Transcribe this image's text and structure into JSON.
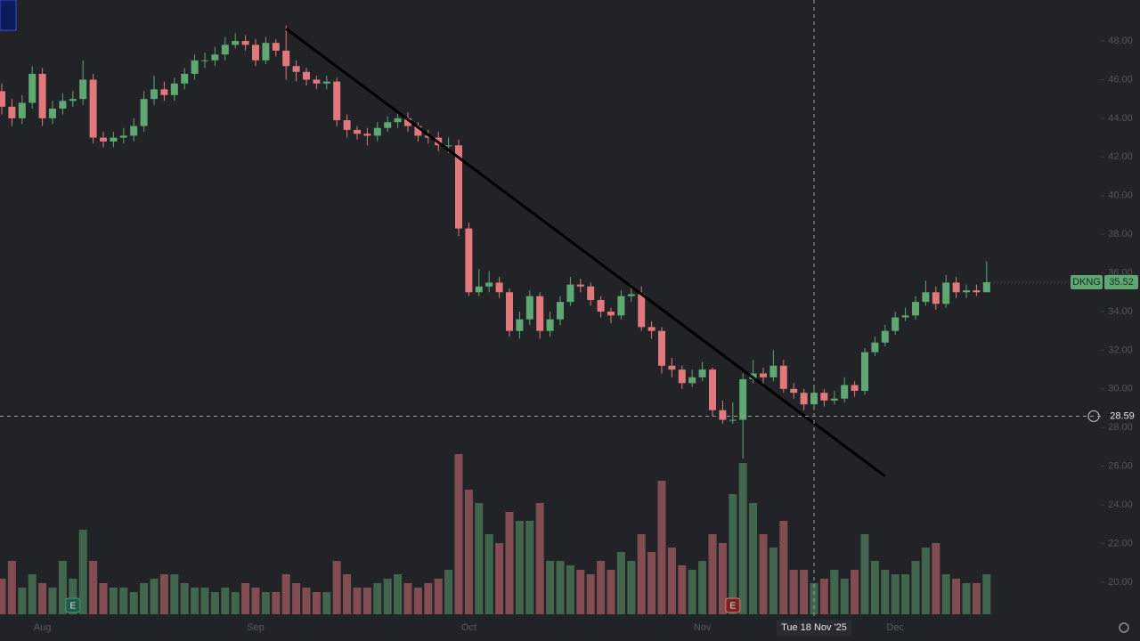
{
  "chart_data": {
    "type": "candlestick",
    "symbol": "DKNG",
    "categories": [
      null,
      null,
      null,
      null,
      "Aug",
      null,
      null,
      null,
      null,
      null,
      null,
      null,
      null,
      null,
      null,
      null,
      null,
      null,
      null,
      null,
      null,
      null,
      null,
      null,
      null,
      "Sep",
      null,
      null,
      null,
      null,
      null,
      null,
      null,
      null,
      null,
      null,
      null,
      null,
      null,
      null,
      null,
      null,
      null,
      null,
      null,
      null,
      "Oct",
      null,
      null,
      null,
      null,
      null,
      null,
      null,
      null,
      null,
      null,
      null,
      null,
      null,
      null,
      null,
      null,
      null,
      null,
      null,
      null,
      null,
      null,
      "Nov",
      null,
      null,
      null,
      null,
      null,
      null,
      null,
      null,
      null,
      null,
      null,
      null,
      null,
      null,
      null,
      null,
      null,
      null,
      "Dec",
      null,
      null,
      null,
      null,
      null,
      null,
      null,
      null,
      null
    ],
    "open": [
      45.4,
      44.6,
      44.0,
      44.8,
      46.3,
      44.0,
      44.5,
      44.9,
      45.0,
      46.0,
      43.0,
      42.8,
      43.0,
      43.1,
      43.6,
      45.0,
      45.5,
      45.2,
      45.8,
      46.3,
      47.0,
      47.0,
      47.3,
      47.8,
      48.0,
      47.8,
      47.0,
      47.9,
      47.5,
      46.7,
      46.4,
      46.0,
      45.8,
      45.9,
      43.9,
      43.4,
      43.2,
      43.1,
      43.5,
      43.8,
      44.0,
      43.6,
      43.1,
      43.0,
      42.6,
      42.6,
      38.3,
      35.0,
      35.3,
      35.5,
      35.0,
      33.0,
      33.6,
      34.8,
      33.0,
      33.6,
      34.5,
      35.4,
      35.3,
      34.6,
      34.0,
      33.8,
      34.8,
      34.9,
      33.2,
      33.0,
      31.2,
      31.0,
      30.3,
      30.6,
      31.0,
      28.9,
      28.4,
      28.4,
      30.5,
      30.8,
      30.6,
      31.2,
      30.0,
      29.8,
      29.2,
      29.8,
      29.4,
      29.5,
      30.2,
      29.9,
      31.9,
      32.4,
      33.0,
      33.7,
      33.8,
      34.5,
      35.0,
      34.4,
      35.5,
      35.0,
      35.1,
      35.0
    ],
    "high": [
      45.8,
      45.0,
      45.2,
      46.7,
      46.6,
      44.9,
      45.3,
      45.4,
      47.0,
      46.3,
      43.3,
      43.3,
      43.5,
      44.0,
      45.4,
      46.2,
      45.9,
      46.1,
      46.6,
      47.3,
      47.4,
      47.7,
      48.2,
      48.4,
      48.3,
      48.1,
      48.2,
      48.1,
      48.8,
      47.0,
      46.6,
      46.2,
      46.2,
      46.1,
      44.2,
      43.6,
      43.5,
      43.8,
      44.1,
      44.4,
      44.3,
      43.8,
      43.4,
      43.3,
      43.0,
      42.9,
      38.6,
      36.2,
      36.1,
      35.8,
      35.2,
      34.0,
      35.1,
      35.0,
      34.0,
      34.8,
      35.8,
      35.7,
      35.5,
      34.8,
      34.2,
      35.1,
      35.4,
      35.3,
      33.5,
      33.2,
      31.6,
      31.2,
      31.0,
      31.4,
      31.1,
      29.4,
      29.3,
      30.8,
      31.5,
      31.1,
      32.0,
      31.5,
      30.3,
      30.0,
      30.2,
      30.0,
      29.9,
      30.6,
      30.4,
      32.1,
      32.7,
      33.3,
      34.0,
      34.2,
      34.8,
      35.6,
      35.3,
      35.9,
      35.8,
      35.4,
      35.4,
      36.6
    ],
    "low": [
      44.2,
      43.6,
      43.7,
      44.5,
      43.6,
      43.7,
      44.2,
      44.6,
      44.7,
      42.7,
      42.5,
      42.5,
      42.7,
      42.8,
      43.3,
      44.7,
      44.9,
      44.9,
      45.5,
      46.0,
      46.6,
      46.7,
      47.0,
      47.6,
      47.5,
      46.7,
      46.8,
      47.2,
      46.0,
      45.9,
      45.7,
      45.5,
      45.5,
      43.6,
      43.0,
      42.9,
      42.6,
      42.8,
      43.3,
      43.5,
      43.3,
      42.8,
      42.7,
      42.3,
      42.2,
      37.9,
      34.8,
      34.8,
      35.0,
      34.7,
      32.7,
      32.6,
      33.3,
      32.6,
      32.7,
      33.3,
      34.3,
      35.0,
      34.3,
      33.7,
      33.4,
      33.6,
      34.5,
      33.0,
      32.6,
      30.8,
      30.6,
      30.0,
      30.1,
      30.4,
      28.6,
      28.2,
      28.2,
      26.4,
      30.3,
      30.3,
      30.4,
      29.8,
      29.5,
      28.9,
      28.9,
      29.1,
      29.2,
      29.3,
      29.6,
      29.7,
      31.7,
      32.2,
      32.8,
      33.5,
      33.6,
      34.3,
      34.1,
      34.2,
      34.7,
      34.7,
      34.8,
      35.2
    ],
    "close": [
      44.6,
      44.0,
      44.8,
      46.3,
      44.0,
      44.5,
      44.9,
      45.0,
      46.0,
      43.0,
      42.8,
      43.0,
      43.1,
      43.6,
      45.0,
      45.5,
      45.2,
      45.8,
      46.3,
      47.0,
      47.0,
      47.3,
      47.8,
      48.0,
      47.8,
      47.0,
      47.9,
      47.5,
      46.7,
      46.4,
      46.0,
      45.8,
      45.9,
      43.9,
      43.4,
      43.2,
      43.1,
      43.5,
      43.8,
      44.0,
      43.6,
      43.1,
      43.0,
      42.6,
      42.6,
      38.3,
      35.0,
      35.3,
      35.5,
      35.0,
      33.0,
      33.6,
      34.8,
      33.0,
      33.6,
      34.5,
      35.4,
      35.3,
      34.6,
      34.0,
      33.8,
      34.8,
      34.9,
      33.2,
      33.0,
      31.2,
      31.0,
      30.3,
      30.6,
      31.0,
      28.9,
      28.4,
      28.4,
      30.5,
      30.8,
      30.6,
      31.2,
      30.0,
      29.8,
      29.2,
      29.8,
      29.4,
      29.5,
      30.2,
      29.9,
      31.9,
      32.4,
      33.0,
      33.7,
      33.8,
      34.5,
      35.0,
      34.4,
      35.5,
      35.0,
      35.1,
      35.0,
      35.52
    ],
    "volume": [
      8,
      12,
      6,
      9,
      7,
      6,
      12,
      8,
      19,
      12,
      7,
      6,
      6,
      5,
      7,
      8,
      9,
      9,
      7,
      6,
      6,
      5,
      6,
      5,
      7,
      6,
      5,
      5,
      9,
      7,
      6,
      5,
      5,
      12,
      9,
      6,
      6,
      7,
      8,
      9,
      7,
      6,
      7,
      8,
      10,
      36,
      28,
      25,
      18,
      16,
      23,
      21,
      21,
      25,
      12,
      12,
      11,
      10,
      9,
      12,
      10,
      14,
      12,
      18,
      14,
      30,
      15,
      11,
      10,
      12,
      18,
      16,
      27,
      34,
      25,
      18,
      15,
      21,
      10,
      10,
      7,
      8,
      10,
      8,
      10,
      18,
      12,
      10,
      9,
      9,
      12,
      15,
      16,
      9,
      8,
      7,
      7,
      9
    ],
    "vlim": [
      0,
      40
    ],
    "ylim": [
      18.34,
      50.12
    ],
    "yticks": [
      {
        "value": 20,
        "label": "20.00"
      },
      {
        "value": 22,
        "label": "22.00"
      },
      {
        "value": 24,
        "label": "24.00"
      },
      {
        "value": 26,
        "label": "26.00"
      },
      {
        "value": 28,
        "label": "28.00"
      },
      {
        "value": 30,
        "label": "30.00"
      },
      {
        "value": 32,
        "label": "32.00"
      },
      {
        "value": 34,
        "label": "34.00"
      },
      {
        "value": 36,
        "label": "36.00"
      },
      {
        "value": 38,
        "label": "38.00"
      },
      {
        "value": 40,
        "label": "40.00"
      },
      {
        "value": 42,
        "label": "42.00"
      },
      {
        "value": 44,
        "label": "44.00"
      },
      {
        "value": 46,
        "label": "46.00"
      },
      {
        "value": 48,
        "label": "48.00"
      }
    ],
    "up_color": "#5fa873",
    "down_color": "#e0787d",
    "trendline": {
      "start": [
        28,
        48.64
      ],
      "end": [
        87,
        25.48
      ]
    },
    "crosshair": {
      "index": 80,
      "price": 28.59,
      "label": "Tue 18 Nov '25"
    },
    "events": [
      {
        "index": 7,
        "label": "E"
      },
      {
        "index": 72,
        "label": "E"
      }
    ]
  }
}
